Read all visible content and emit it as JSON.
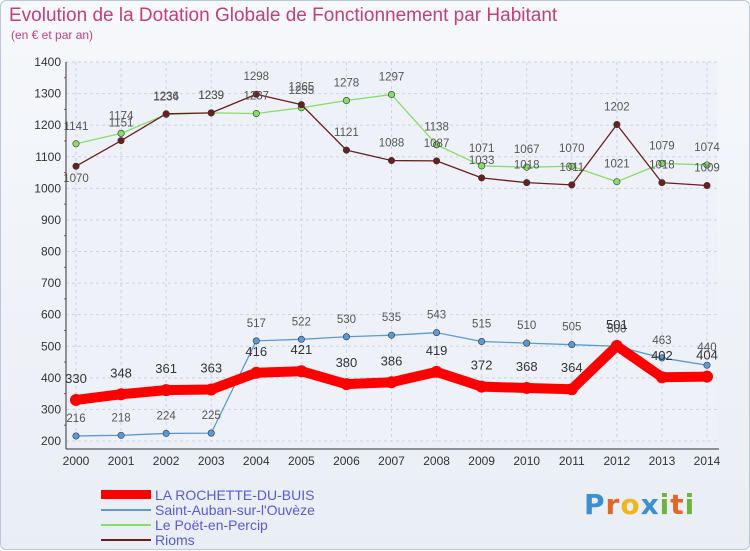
{
  "header": {
    "title": "Evolution de la Dotation Globale de Fonctionnement par Habitant",
    "subtitle": "(en € et par an)"
  },
  "brand": {
    "logo_text": "Proxiti",
    "logo_colors": [
      "#3c8fd0",
      "#e0662a",
      "#f2b51a",
      "#3c8fd0",
      "#6fb33a",
      "#e0662a",
      "#6fb33a"
    ]
  },
  "chart_data": {
    "type": "line",
    "categories": [
      "2000",
      "2001",
      "2002",
      "2003",
      "2004",
      "2005",
      "2006",
      "2007",
      "2008",
      "2009",
      "2010",
      "2011",
      "2012",
      "2013",
      "2014"
    ],
    "ylim": [
      200,
      1400
    ],
    "yticks": [
      "200",
      "300",
      "400",
      "500",
      "600",
      "700",
      "800",
      "900",
      "1000",
      "1100",
      "1200",
      "1300",
      "1400"
    ],
    "grid": true,
    "legend_position": "bottom-left",
    "series": [
      {
        "name": "LA ROCHETTE-DU-BUIS",
        "color": "#ff0000",
        "values": [
          330,
          348,
          361,
          363,
          416,
          421,
          380,
          386,
          419,
          372,
          368,
          364,
          501,
          402,
          404
        ]
      },
      {
        "name": "Saint-Auban-sur-l'Ouvèze",
        "color": "#5b9ad6",
        "values": [
          216,
          218,
          224,
          225,
          517,
          522,
          530,
          535,
          543,
          515,
          510,
          505,
          500,
          463,
          440
        ]
      },
      {
        "name": "Le Poët-en-Percip",
        "color": "#88dd66",
        "values": [
          1141,
          1174,
          1234,
          1239,
          1237,
          1255,
          1278,
          1297,
          1138,
          1071,
          1067,
          1070,
          1021,
          1079,
          1074
        ]
      },
      {
        "name": "Rioms",
        "color": "#6b1f1f",
        "values": [
          1070,
          1151,
          1236,
          1239,
          1298,
          1265,
          1121,
          1088,
          1087,
          1033,
          1018,
          1011,
          1202,
          1018,
          1009
        ]
      }
    ]
  }
}
